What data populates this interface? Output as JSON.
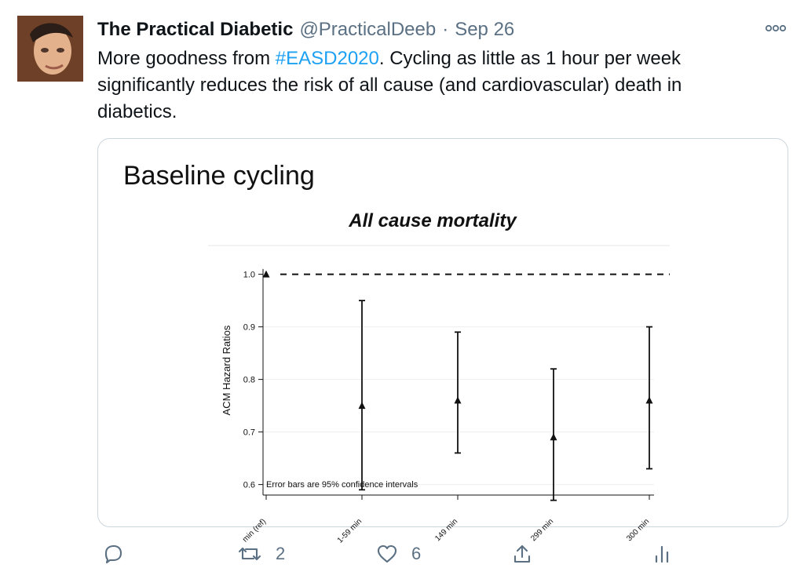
{
  "tweet": {
    "author_name": "The Practical Diabetic",
    "handle": "@PracticalDeeb",
    "separator": "·",
    "date": "Sep 26",
    "text_before": "More goodness from ",
    "hashtag": "#EASD2020",
    "text_after": ". Cycling as little as 1 hour per week significantly reduces the risk of all cause (and cardiovascular) death in diabetics."
  },
  "media": {
    "slide_title": "Baseline cycling",
    "note": "Error bars are 95% confidence intervals"
  },
  "chart_data": {
    "type": "scatter",
    "title": "All cause mortality",
    "ylabel": "ACM Hazard Ratios",
    "ylim": [
      0.58,
      1.02
    ],
    "y_ticks": [
      0.6,
      0.7,
      0.8,
      0.9,
      1.0
    ],
    "y_tick_labels": [
      "0.6",
      "0.7",
      "0.8",
      "0.9",
      "1.0"
    ],
    "x_tick_labels": [
      "min (ref)",
      "1-59 min",
      "149 min",
      "299 min",
      "300 min"
    ],
    "reference_line": 1.0,
    "points": [
      {
        "label": "min (ref)",
        "y": 1.0
      },
      {
        "label": "1-59 min",
        "y": 0.75,
        "lower": 0.59,
        "upper": 0.95
      },
      {
        "label": "149 min",
        "y": 0.76,
        "lower": 0.66,
        "upper": 0.89
      },
      {
        "label": "299 min",
        "y": 0.69,
        "lower": 0.57,
        "upper": 0.82
      },
      {
        "label": "300 min",
        "y": 0.76,
        "lower": 0.63,
        "upper": 0.9
      }
    ],
    "grid": true
  },
  "actions": {
    "reply_icon": "reply-icon",
    "retweet_icon": "retweet-icon",
    "retweet_count": "2",
    "like_icon": "heart-icon",
    "like_count": "6",
    "share_icon": "share-icon",
    "analytics_icon": "analytics-icon"
  },
  "colors": {
    "text": "#0f1419",
    "secondary": "#5b7083",
    "link": "#1da1f2",
    "border": "#ccd6dd"
  }
}
